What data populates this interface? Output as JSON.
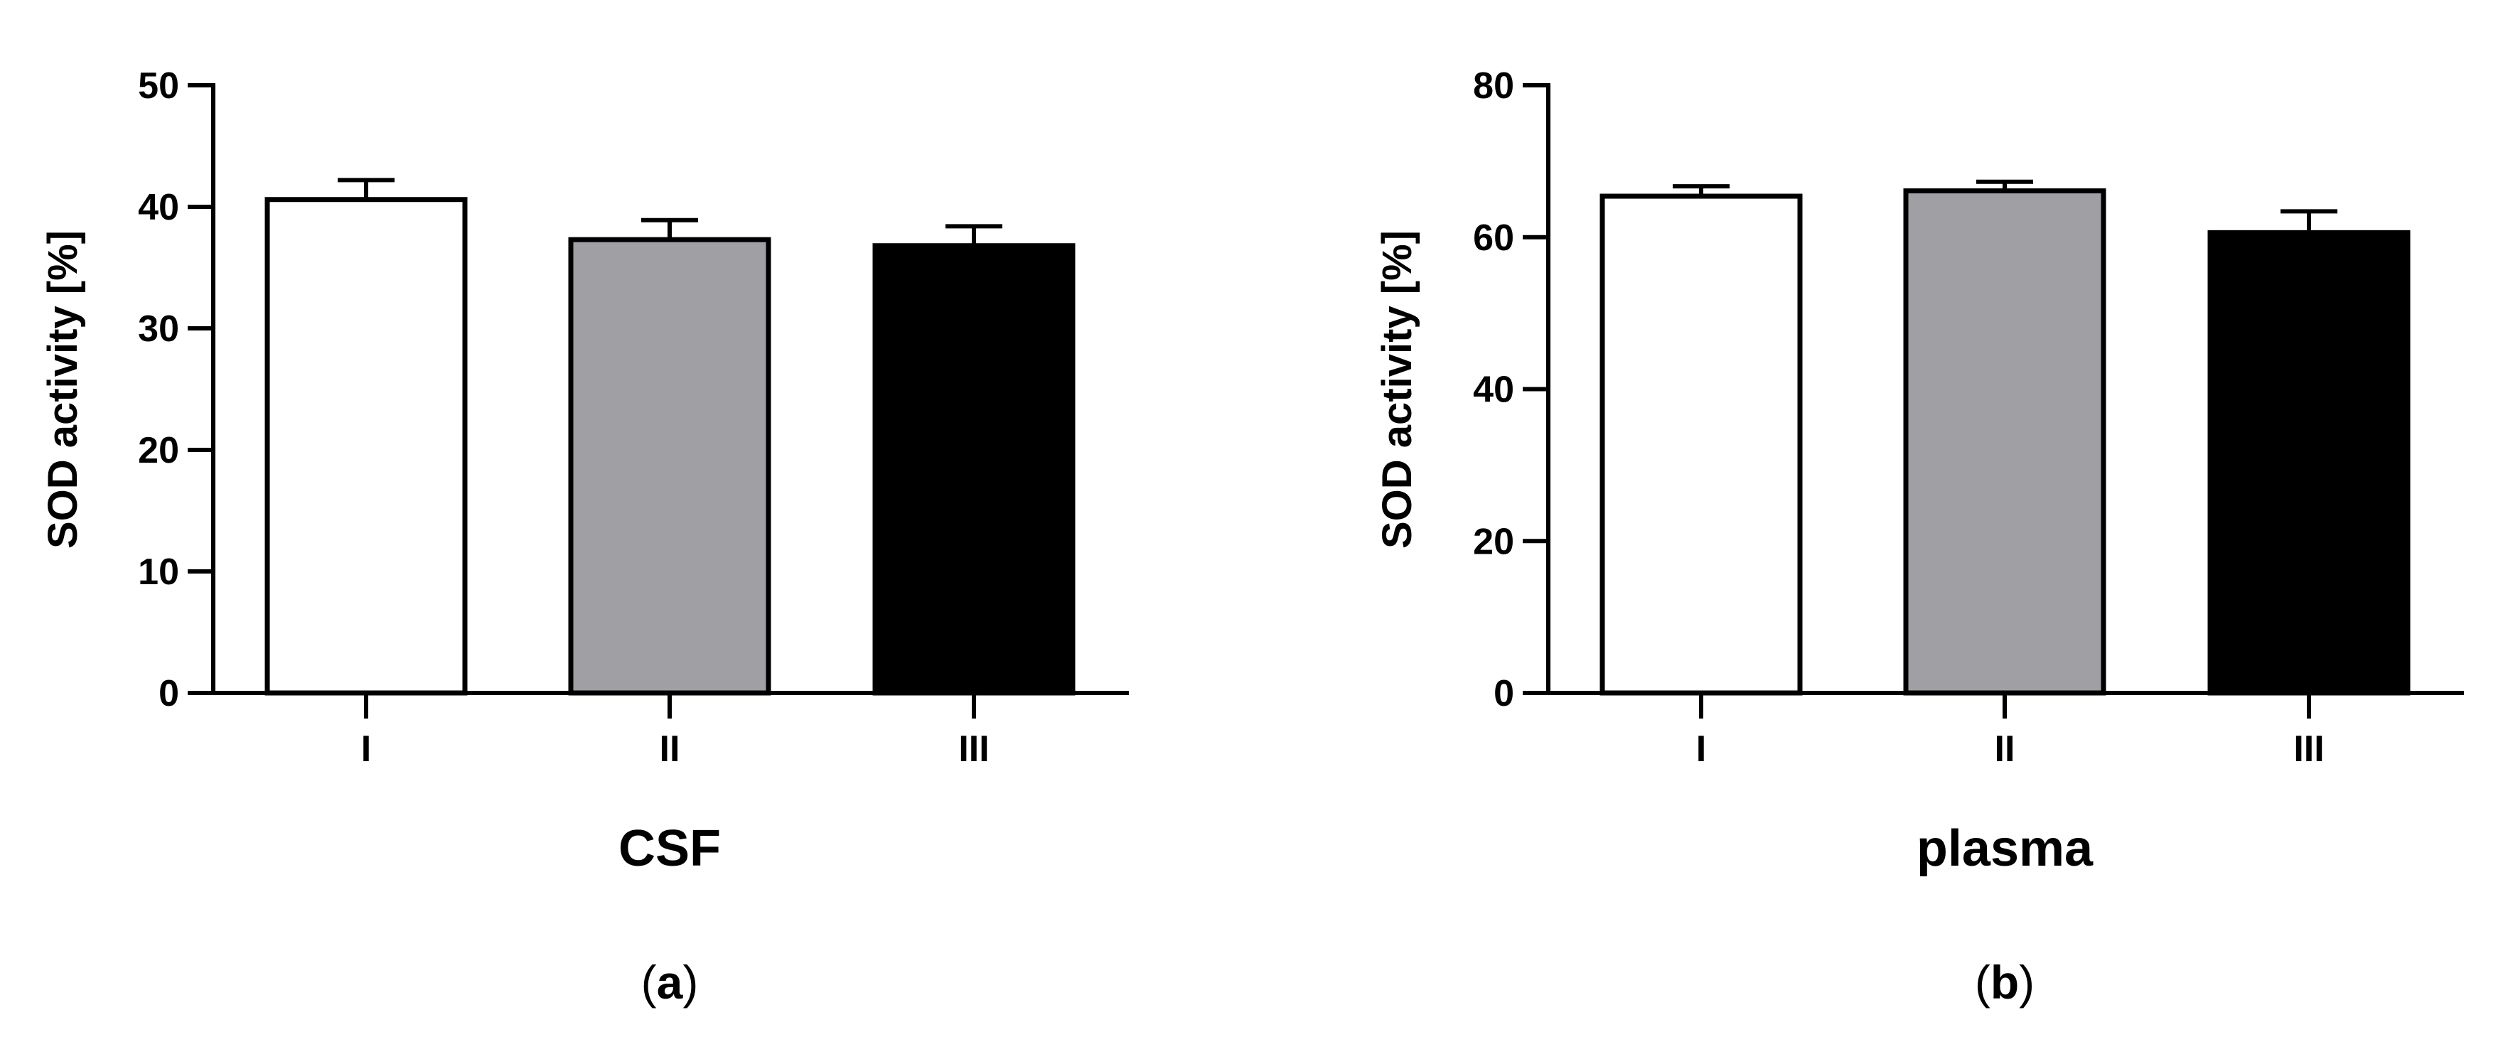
{
  "chart_data": [
    {
      "type": "bar",
      "panel_label": "a",
      "categories": [
        "I",
        "II",
        "III"
      ],
      "values": [
        40.6,
        37.3,
        36.8
      ],
      "errors": [
        1.6,
        1.6,
        1.6
      ],
      "bar_colors": [
        "#ffffff",
        "#a0a0a4",
        "#000000"
      ],
      "xlabel": "CSF",
      "ylabel": "SOD activity [%]",
      "ylim": [
        0,
        50
      ],
      "yticks": [
        "0",
        "10",
        "20",
        "30",
        "40",
        "50"
      ],
      "grid": false
    },
    {
      "type": "bar",
      "panel_label": "b",
      "categories": [
        "I",
        "II",
        "III"
      ],
      "values": [
        65.4,
        66.1,
        60.6
      ],
      "errors": [
        1.3,
        1.2,
        2.8
      ],
      "bar_colors": [
        "#ffffff",
        "#a0a0a4",
        "#000000"
      ],
      "xlabel": "plasma",
      "ylabel": "SOD activity [%]",
      "ylim": [
        0,
        80
      ],
      "yticks": [
        "0",
        "20",
        "40",
        "60",
        "80"
      ],
      "grid": false
    }
  ]
}
